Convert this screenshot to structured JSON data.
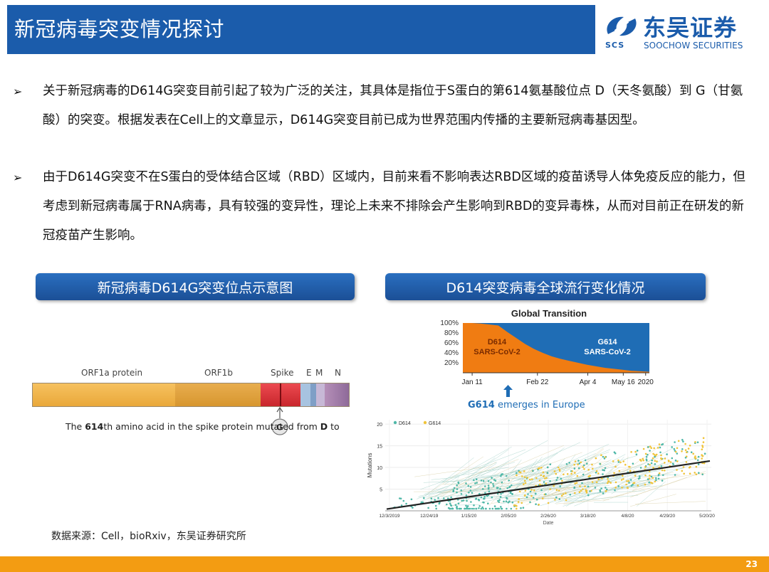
{
  "header": {
    "title": "新冠病毒突变情况探讨",
    "logo_name": "东吴证券",
    "logo_sub_left": "SCS",
    "logo_sub": "SOOCHOW SECURITIES"
  },
  "bullets": [
    "关于新冠病毒的D614G突变目前引起了较为广泛的关注，其具体是指位于S蛋白的第614氨基酸位点 D（天冬氨酸）到 G（甘氨酸）的突变。根据发表在Cell上的文章显示，D614G突变目前已成为世界范围内传播的主要新冠病毒基因型。",
    "由于D614G突变不在S蛋白的受体结合区域（RBD）区域内，目前来看不影响表达RBD区域的疫苗诱导人体免疫反应的能力，但考虑到新冠病毒属于RNA病毒，具有较强的变异性，理论上未来不排除会产生影响到RBD的变异毒株，从而对目前正在研发的新冠疫苗产生影响。"
  ],
  "bullet_mark": "➢",
  "left_panel": {
    "title": "新冠病毒D614G突变位点示意图",
    "proteins": [
      "ORF1a protein",
      "ORF1b",
      "Spike",
      "E",
      "M",
      "N"
    ],
    "caption_pre": "The ",
    "caption_num": "614",
    "caption_mid": "th amino acid in the spike protein mutated from ",
    "caption_from": "D",
    "caption_to_word": " to ",
    "caption_to": "G"
  },
  "right_panel": {
    "title": "D614突变病毒全球流行变化情况"
  },
  "chart_data": [
    {
      "type": "area",
      "title": "Global Transition",
      "x": [
        "Jan 11",
        "Feb 22",
        "Apr 4",
        "May 16",
        "2020"
      ],
      "y_ticks": [
        "100%",
        "80%",
        "60%",
        "40%",
        "20%"
      ],
      "ylim": [
        0,
        100
      ],
      "series": [
        {
          "name": "D614\nSARS-CoV-2",
          "label_lines": [
            "D614",
            "SARS-CoV-2"
          ],
          "color": "#f07c12",
          "share": [
            100,
            100,
            99,
            97,
            95,
            82,
            70,
            58,
            48,
            40,
            33,
            28,
            24,
            20,
            16,
            13,
            10,
            8,
            6,
            4,
            3,
            2
          ]
        },
        {
          "name": "G614\nSARS-CoV-2",
          "label_lines": [
            "G614",
            "SARS-CoV-2"
          ],
          "color": "#1f6db5"
        }
      ],
      "annotation_bold": "G614",
      "annotation_rest": " emerges in Europe"
    },
    {
      "type": "scatter",
      "legend": [
        "D614",
        "G614"
      ],
      "colors": {
        "D614": "#4fb8a8",
        "G614": "#f0c43a",
        "trend": "#222222"
      },
      "ylabel": "Mutations",
      "xlabel": "Date",
      "y_ticks": [
        20,
        15,
        10,
        5
      ],
      "ylim": [
        0,
        21
      ],
      "x_ticks": [
        "12/3/2019",
        "12/24/19",
        "1/15/20",
        "2/05/20",
        "2/26/20",
        "3/18/20",
        "4/8/20",
        "4/29/20",
        "5/20/20"
      ],
      "trend": {
        "start": 0.4,
        "end": 11.5
      }
    }
  ],
  "source": "数据来源：Cell，bioRxiv，东吴证券研究所",
  "page_number": "23",
  "colors": {
    "brand": "#1b5cab",
    "footer": "#f39c12",
    "spike": "#e0343a",
    "orf": "#f2b14a"
  }
}
